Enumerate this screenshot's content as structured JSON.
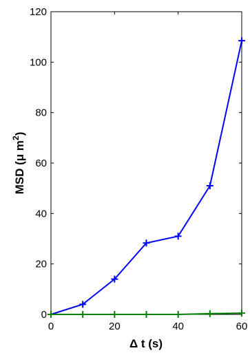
{
  "chart_data": {
    "type": "line",
    "title": "",
    "xlabel": "Δ t (s)",
    "ylabel": "MSD (μ m²)",
    "xlim": [
      0,
      60
    ],
    "ylim": [
      0,
      120
    ],
    "xticks": [
      0,
      20,
      40,
      60
    ],
    "yticks": [
      0,
      20,
      40,
      60,
      80,
      100,
      120
    ],
    "grid": false,
    "x": [
      0,
      10,
      20,
      30,
      40,
      50,
      60
    ],
    "series": [
      {
        "values": [
          0,
          4,
          14,
          28.3,
          31,
          51,
          108.5
        ],
        "color": "#0000ff",
        "marker": "plus"
      },
      {
        "values": [
          0,
          0,
          0,
          0,
          0,
          0.3,
          0.5
        ],
        "color": "#007f00",
        "marker": "plus"
      }
    ]
  }
}
